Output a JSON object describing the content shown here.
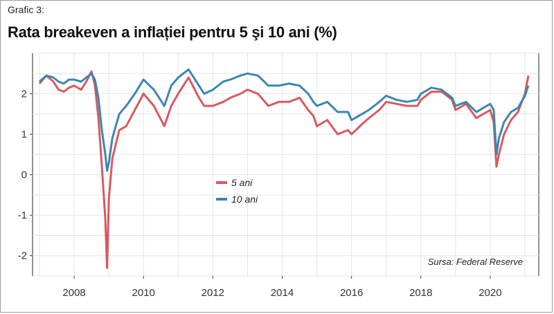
{
  "header": {
    "label": "Grafic 3:",
    "title": "Rata breakeven a inflației pentru 5 şi 10 ani (%)"
  },
  "source": "Sursa: Federal Reserve",
  "colors": {
    "five_year": "#d9595f",
    "ten_year": "#3b86b0",
    "grid": "#e4e4e4"
  },
  "chart_data": {
    "type": "line",
    "title": "Rata breakeven a inflației pentru 5 şi 10 ani (%)",
    "xlabel": "",
    "ylabel": "",
    "xlim": [
      2006.8,
      2021.4
    ],
    "ylim": [
      -2.5,
      3.0
    ],
    "x_ticks": [
      2008,
      2010,
      2012,
      2014,
      2016,
      2018,
      2020
    ],
    "y_ticks": [
      -2,
      -1,
      0,
      1,
      2
    ],
    "grid": true,
    "legend_position": "center",
    "series": [
      {
        "name": "5 ani",
        "color": "#d9595f",
        "x": [
          2007.0,
          2007.2,
          2007.4,
          2007.55,
          2007.7,
          2007.85,
          2008.0,
          2008.2,
          2008.35,
          2008.5,
          2008.6,
          2008.7,
          2008.8,
          2008.9,
          2008.95,
          2009.0,
          2009.1,
          2009.3,
          2009.5,
          2009.75,
          2010.0,
          2010.3,
          2010.6,
          2010.8,
          2011.0,
          2011.3,
          2011.6,
          2011.75,
          2012.0,
          2012.3,
          2012.5,
          2012.8,
          2013.0,
          2013.3,
          2013.6,
          2013.9,
          2014.2,
          2014.5,
          2014.75,
          2014.9,
          2015.0,
          2015.3,
          2015.6,
          2015.9,
          2016.0,
          2016.3,
          2016.5,
          2016.8,
          2017.0,
          2017.3,
          2017.6,
          2017.9,
          2018.0,
          2018.3,
          2018.6,
          2018.9,
          2019.0,
          2019.3,
          2019.6,
          2019.9,
          2020.0,
          2020.1,
          2020.18,
          2020.25,
          2020.4,
          2020.6,
          2020.8,
          2021.0,
          2021.1
        ],
        "values": [
          2.25,
          2.45,
          2.3,
          2.1,
          2.05,
          2.15,
          2.2,
          2.1,
          2.3,
          2.55,
          2.2,
          1.4,
          0.2,
          -1.1,
          -2.3,
          -0.6,
          0.4,
          1.1,
          1.2,
          1.6,
          2.0,
          1.7,
          1.2,
          1.7,
          2.0,
          2.4,
          1.9,
          1.7,
          1.7,
          1.8,
          1.9,
          2.0,
          2.1,
          2.0,
          1.7,
          1.8,
          1.8,
          1.9,
          1.6,
          1.45,
          1.2,
          1.35,
          1.0,
          1.1,
          1.0,
          1.25,
          1.4,
          1.6,
          1.8,
          1.75,
          1.7,
          1.7,
          1.85,
          2.05,
          2.05,
          1.85,
          1.6,
          1.75,
          1.4,
          1.55,
          1.6,
          1.3,
          0.2,
          0.5,
          1.0,
          1.35,
          1.55,
          2.0,
          2.45
        ]
      },
      {
        "name": "10 ani",
        "color": "#3b86b0",
        "x": [
          2007.0,
          2007.2,
          2007.4,
          2007.55,
          2007.7,
          2007.85,
          2008.0,
          2008.2,
          2008.35,
          2008.5,
          2008.6,
          2008.7,
          2008.8,
          2008.9,
          2008.95,
          2009.0,
          2009.1,
          2009.3,
          2009.5,
          2009.75,
          2010.0,
          2010.3,
          2010.6,
          2010.8,
          2011.0,
          2011.3,
          2011.6,
          2011.75,
          2012.0,
          2012.3,
          2012.5,
          2012.8,
          2013.0,
          2013.3,
          2013.6,
          2013.9,
          2014.2,
          2014.5,
          2014.75,
          2014.9,
          2015.0,
          2015.3,
          2015.6,
          2015.9,
          2016.0,
          2016.3,
          2016.5,
          2016.8,
          2017.0,
          2017.3,
          2017.6,
          2017.9,
          2018.0,
          2018.3,
          2018.6,
          2018.9,
          2019.0,
          2019.3,
          2019.6,
          2019.9,
          2020.0,
          2020.1,
          2020.18,
          2020.25,
          2020.4,
          2020.6,
          2020.8,
          2021.0,
          2021.1
        ],
        "values": [
          2.3,
          2.45,
          2.4,
          2.3,
          2.25,
          2.35,
          2.35,
          2.3,
          2.4,
          2.5,
          2.35,
          1.9,
          1.1,
          0.5,
          0.1,
          0.3,
          0.9,
          1.5,
          1.7,
          2.0,
          2.35,
          2.1,
          1.7,
          2.2,
          2.4,
          2.6,
          2.2,
          2.0,
          2.1,
          2.3,
          2.35,
          2.45,
          2.5,
          2.45,
          2.2,
          2.2,
          2.25,
          2.2,
          2.0,
          1.8,
          1.7,
          1.8,
          1.55,
          1.55,
          1.35,
          1.5,
          1.6,
          1.8,
          1.95,
          1.85,
          1.8,
          1.85,
          2.0,
          2.15,
          2.1,
          1.9,
          1.7,
          1.8,
          1.55,
          1.7,
          1.75,
          1.6,
          0.5,
          0.9,
          1.3,
          1.55,
          1.65,
          1.95,
          2.2
        ]
      }
    ]
  }
}
